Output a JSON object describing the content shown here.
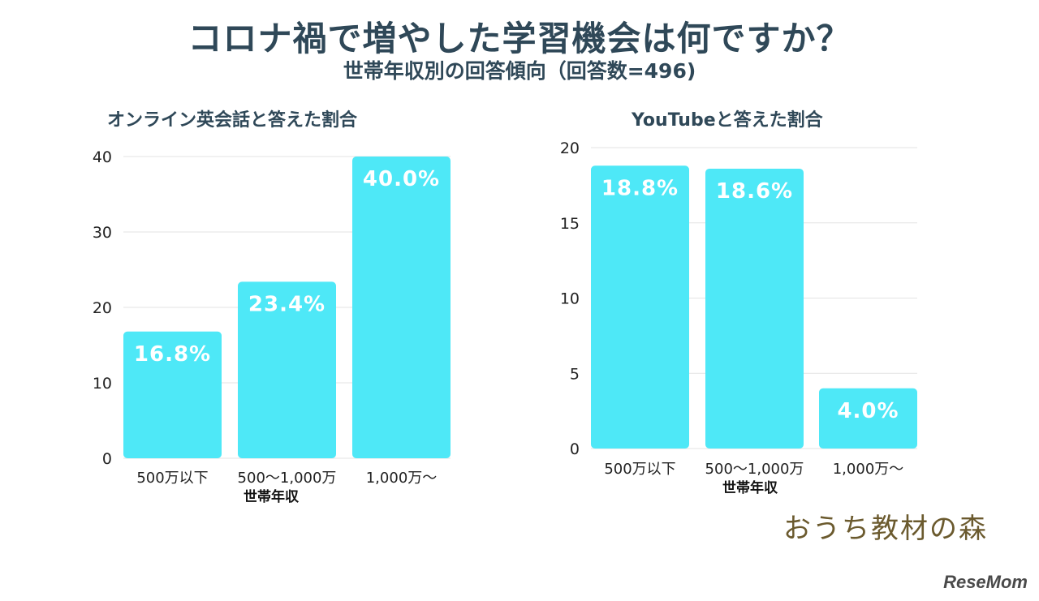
{
  "title": "コロナ禍で増やした学習機会は何ですか？",
  "subtitle": "世帯年収別の回答傾向（回答数=496)",
  "chart_data": [
    {
      "type": "bar",
      "title": "オンライン英会話と答えた割合",
      "xlabel": "世帯年収",
      "ylabel": "",
      "categories": [
        "500万以下",
        "500〜1,000万",
        "1,000万〜"
      ],
      "values": [
        16.8,
        23.4,
        40.0
      ],
      "data_labels": [
        "16.8%",
        "23.4%",
        "40.0%"
      ],
      "ylim": [
        0,
        40
      ],
      "yticks": [
        0,
        10,
        20,
        30,
        40
      ],
      "grid": true,
      "bar_color": "#4ee8f7"
    },
    {
      "type": "bar",
      "title": "YouTubeと答えた割合",
      "xlabel": "世帯年収",
      "ylabel": "",
      "categories": [
        "500万以下",
        "500〜1,000万",
        "1,000万〜"
      ],
      "values": [
        18.8,
        18.6,
        4.0
      ],
      "data_labels": [
        "18.8%",
        "18.6%",
        "4.0%"
      ],
      "ylim": [
        0,
        20
      ],
      "yticks": [
        0,
        5,
        10,
        15,
        20
      ],
      "grid": true,
      "bar_color": "#4ee8f7"
    }
  ],
  "brand": "おうち教材の森",
  "watermark": "ReseMom"
}
